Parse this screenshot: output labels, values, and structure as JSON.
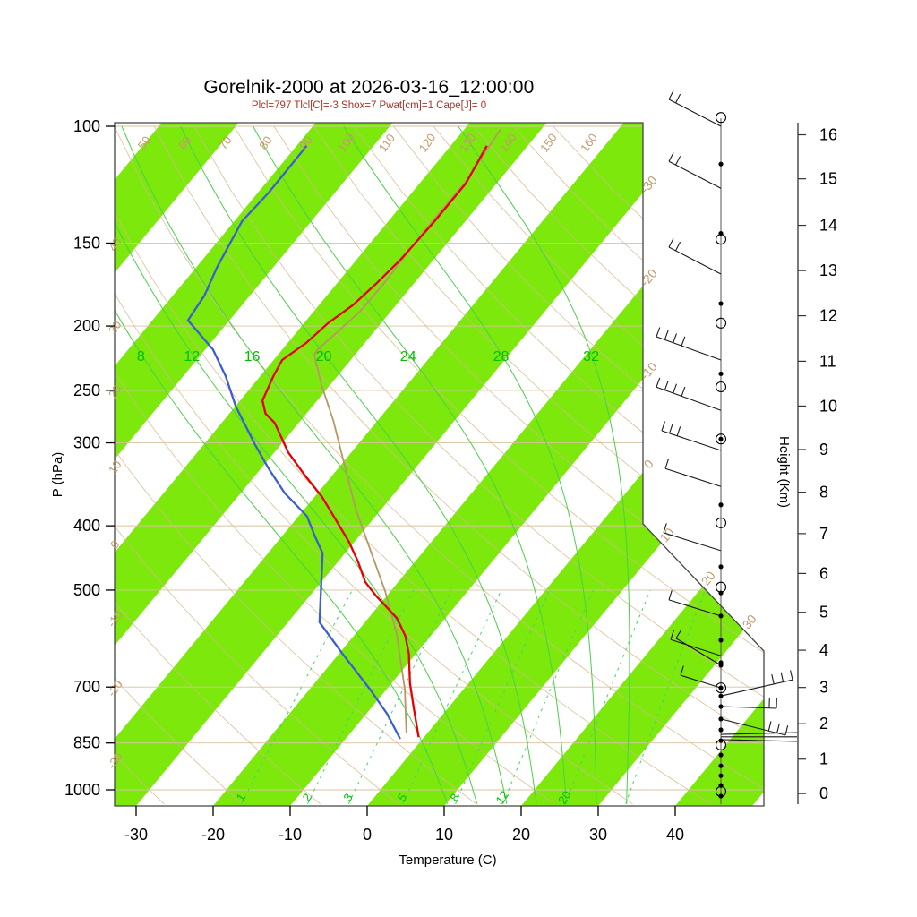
{
  "title": "Gorelnik-2000 at 2026-03-16_12:00:00",
  "subtitle": "Plcl=797 Tlcl[C]=-3 Shox=7 Pwat[cm]=1 Cape[J]= 0",
  "colors": {
    "stripe_green": "#7CE80C",
    "moist_adiabat_green": "#49D049",
    "mixing_dash_green": "#3FD765",
    "green_label": "#00BE00",
    "tan_line": "#D8B78C",
    "tan_gridline": "#D8C29E",
    "tan_label": "#C49A6C",
    "temperature_red": "#E60000",
    "dewpoint_blue": "#3A5FD0",
    "parcel_tan": "#B89664",
    "frame": "#444444",
    "barb_black": "#1a1a1a"
  },
  "axes": {
    "pressure": {
      "label": "P (hPa)",
      "ticks": [
        100,
        150,
        200,
        250,
        300,
        400,
        500,
        700,
        850,
        1000
      ]
    },
    "temperature": {
      "label": "Temperature (C)",
      "ticks": [
        -30,
        -20,
        -10,
        0,
        10,
        20,
        30,
        40
      ]
    },
    "height": {
      "label": "Height (Km)",
      "ticks": [
        0,
        1,
        2,
        3,
        4,
        5,
        6,
        7,
        8,
        9,
        10,
        11,
        12,
        13,
        14,
        15,
        16
      ]
    }
  },
  "chart_data": {
    "type": "skewt_logp_sounding",
    "title": "Gorelnik-2000 at 2026-03-16_12:00:00",
    "stats": {
      "Plcl_hPa": 797,
      "Tlcl_C": -3,
      "Showalter": 7,
      "Pwat_cm": 1,
      "Cape_J": 0
    },
    "pressure_ticks_hpa": [
      100,
      150,
      200,
      250,
      300,
      400,
      500,
      700,
      850,
      1000
    ],
    "temperature_ticks_c": [
      -30,
      -20,
      -10,
      0,
      10,
      20,
      30,
      40
    ],
    "height_ticks_km": [
      0,
      1,
      2,
      3,
      4,
      5,
      6,
      7,
      8,
      9,
      10,
      11,
      12,
      13,
      14,
      15,
      16
    ],
    "dry_adiabat_labels_top_c": [
      50,
      60,
      70,
      80,
      90,
      100,
      110,
      120,
      130,
      140,
      150,
      160
    ],
    "dry_adiabat_labels_left_c": [
      40,
      30,
      20,
      10,
      0,
      -10,
      -20,
      -30
    ],
    "isotherm_labels_right_c": [
      -30,
      -20,
      -10,
      0,
      10,
      20,
      30
    ],
    "moist_adiabat_labels_c": [
      8,
      12,
      16,
      20,
      24,
      28,
      32
    ],
    "mixing_ratio_labels_gkg": [
      1,
      2,
      3,
      5,
      8,
      12,
      20
    ],
    "temperature_profile_p_t": [
      [
        107,
        -55.3
      ],
      [
        122,
        -54.0
      ],
      [
        140,
        -54.0
      ],
      [
        145,
        -54.1
      ],
      [
        159,
        -54.3
      ],
      [
        173,
        -54.9
      ],
      [
        186,
        -55.6
      ],
      [
        198,
        -56.9
      ],
      [
        212,
        -57.6
      ],
      [
        225,
        -58.9
      ],
      [
        238,
        -58.3
      ],
      [
        259,
        -57.1
      ],
      [
        271,
        -55.3
      ],
      [
        280,
        -53.1
      ],
      [
        310,
        -48.2
      ],
      [
        335,
        -43.7
      ],
      [
        362,
        -39.0
      ],
      [
        388,
        -35.3
      ],
      [
        423,
        -30.7
      ],
      [
        453,
        -27.4
      ],
      [
        486,
        -24.3
      ],
      [
        510,
        -21.4
      ],
      [
        551,
        -16.3
      ],
      [
        586,
        -13.3
      ],
      [
        624,
        -10.9
      ],
      [
        691,
        -7.6
      ],
      [
        758,
        -4.2
      ],
      [
        833,
        -0.7
      ]
    ],
    "dewpoint_profile_p_t": [
      [
        107,
        -78.7
      ],
      [
        126,
        -78.6
      ],
      [
        139,
        -79.0
      ],
      [
        163,
        -77.3
      ],
      [
        180,
        -75.9
      ],
      [
        196,
        -75.4
      ],
      [
        217,
        -69.0
      ],
      [
        238,
        -64.5
      ],
      [
        264,
        -60.0
      ],
      [
        302,
        -53.3
      ],
      [
        328,
        -49.0
      ],
      [
        357,
        -44.3
      ],
      [
        387,
        -38.9
      ],
      [
        416,
        -35.6
      ],
      [
        440,
        -32.9
      ],
      [
        559,
        -25.9
      ],
      [
        624,
        -19.5
      ],
      [
        706,
        -12.1
      ],
      [
        768,
        -7.3
      ],
      [
        838,
        -2.9
      ]
    ],
    "parcel_profile_p_t": [
      [
        101,
        -55.3
      ],
      [
        121,
        -54.2
      ],
      [
        143,
        -54.3
      ],
      [
        172,
        -53.9
      ],
      [
        190,
        -54.0
      ],
      [
        217,
        -55.4
      ],
      [
        221,
        -55.3
      ],
      [
        246,
        -51.0
      ],
      [
        278,
        -45.7
      ],
      [
        325,
        -39.4
      ],
      [
        377,
        -33.4
      ],
      [
        423,
        -28.3
      ],
      [
        502,
        -20.7
      ],
      [
        581,
        -14.7
      ],
      [
        706,
        -7.6
      ],
      [
        822,
        -2.7
      ]
    ],
    "wind_markers_p_type": [
      [
        97,
        "circle"
      ],
      [
        114,
        "dot"
      ],
      [
        145,
        "dot"
      ],
      [
        148,
        "circle"
      ],
      [
        185,
        "dot"
      ],
      [
        198,
        "circle"
      ],
      [
        236,
        "dot"
      ],
      [
        247,
        "circle"
      ],
      [
        296,
        "circledot"
      ],
      [
        372,
        "dot"
      ],
      [
        396,
        "circle"
      ],
      [
        461,
        "dot"
      ],
      [
        495,
        "circle"
      ],
      [
        505,
        "dot"
      ],
      [
        547,
        "dot"
      ],
      [
        595,
        "dot"
      ],
      [
        643,
        "dot"
      ],
      [
        649,
        "dot"
      ],
      [
        702,
        "circledot"
      ],
      [
        722,
        "dot"
      ],
      [
        749,
        "dot"
      ],
      [
        782,
        "dot"
      ],
      [
        812,
        "dot"
      ],
      [
        843,
        "dot"
      ],
      [
        856,
        "circle"
      ],
      [
        886,
        "dot"
      ],
      [
        920,
        "dot"
      ],
      [
        952,
        "dot"
      ],
      [
        985,
        "dot"
      ],
      [
        1006,
        "circle"
      ],
      [
        1022,
        "dot"
      ]
    ],
    "wind_barbs_p_dx_dy_ticks": [
      [
        100,
        -58,
        -30,
        2
      ],
      [
        124,
        -58,
        -30,
        2
      ],
      [
        167,
        -58,
        -30,
        2
      ],
      [
        225,
        -72,
        -26,
        4
      ],
      [
        268,
        -72,
        -26,
        4
      ],
      [
        308,
        -66,
        -22,
        3
      ],
      [
        349,
        -62,
        -20,
        1
      ],
      [
        436,
        -64,
        -20,
        1
      ],
      [
        547,
        -58,
        -18,
        1
      ],
      [
        628,
        -56,
        -18,
        1
      ],
      [
        649,
        -50,
        -30,
        1
      ],
      [
        702,
        -45,
        -14,
        1
      ],
      [
        722,
        80,
        -18,
        3
      ],
      [
        749,
        62,
        2,
        2
      ],
      [
        782,
        72,
        18,
        3
      ],
      [
        825,
        85,
        -2,
        0
      ],
      [
        832,
        85,
        0,
        0
      ],
      [
        840,
        85,
        2,
        0
      ]
    ]
  }
}
